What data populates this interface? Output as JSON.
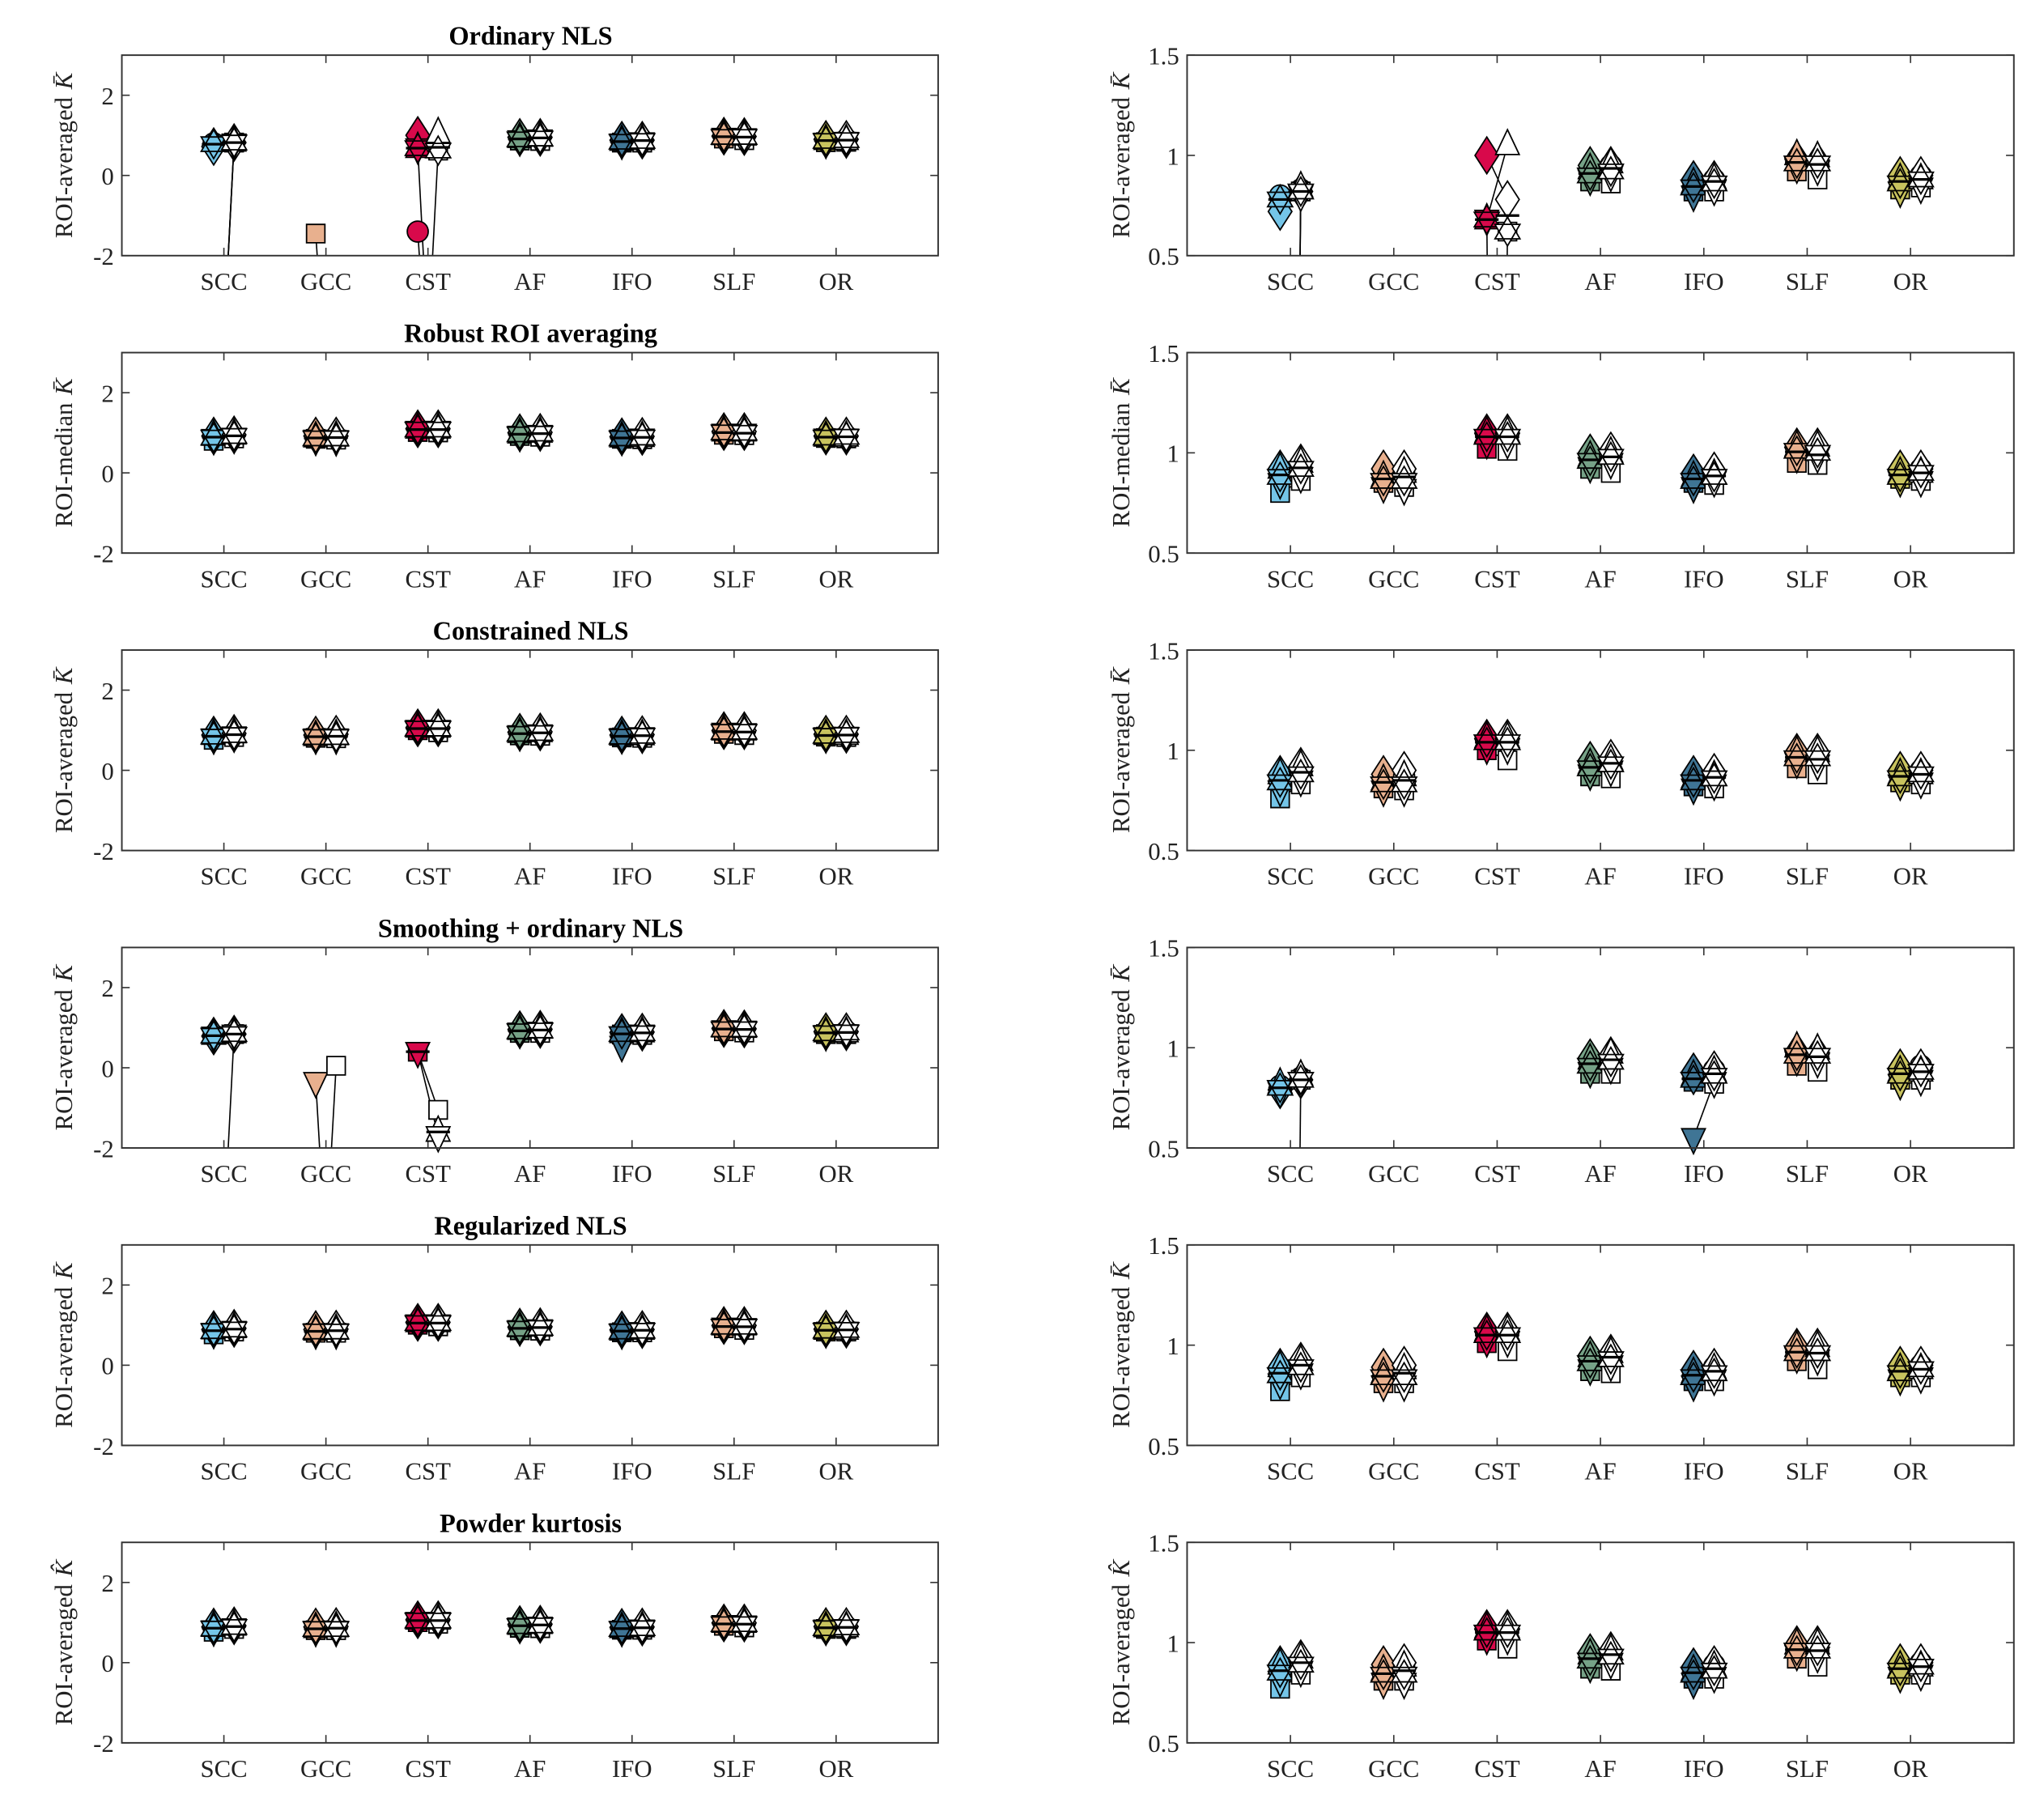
{
  "chart_data": {
    "type": "scatter",
    "categories": [
      "SCC",
      "GCC",
      "CST",
      "AF",
      "IFO",
      "SLF",
      "OR"
    ],
    "region_colors": {
      "SCC": "#74c5e8",
      "GCC": "#e8b08e",
      "CST": "#d8094b",
      "AF": "#76a287",
      "IFO": "#3f7595",
      "SLF": "#e8b08e",
      "OR": "#c8c35e"
    },
    "open_marker_color": "#ffffff",
    "marker_order": [
      "circle",
      "square",
      "diamond",
      "triangle-up",
      "triangle-down",
      "hexagram"
    ],
    "note_off_scale": -9,
    "xlim": [
      0,
      8
    ],
    "left_ylim": [
      -2,
      3
    ],
    "left_yticks": [
      "-2",
      "0",
      "2"
    ],
    "right_ylim": [
      0.5,
      1.5
    ],
    "right_yticks": [
      "0.5",
      "1",
      "1.5"
    ],
    "panels": [
      {
        "title": "Ordinary NLS",
        "ylabel": "ROI-averaged",
        "ysymbol": "K̄",
        "filled": {
          "SCC": [
            0.8,
            -9,
            0.72,
            -9,
            -9,
            0.78
          ],
          "GCC": [
            -9,
            -1.45,
            -9,
            -9,
            -9,
            -9
          ],
          "CST": [
            -1.4,
            -9,
            1.0,
            0.68,
            0.68,
            0.68
          ],
          "AF": [
            0.92,
            0.87,
            0.95,
            0.93,
            0.88,
            0.9
          ],
          "IFO": [
            0.85,
            0.82,
            0.88,
            0.86,
            0.8,
            0.84
          ],
          "SLF": [
            0.97,
            0.92,
            0.98,
            1.0,
            0.94,
            0.96
          ],
          "OR": [
            0.88,
            0.83,
            0.9,
            0.88,
            0.82,
            0.86
          ]
        },
        "open": {
          "SCC": [
            0.83,
            0.82,
            0.82,
            0.84,
            0.8,
            0.82
          ],
          "GCC": [
            -9,
            -9,
            -9,
            -9,
            -9,
            -9
          ],
          "CST": [
            -9,
            0.62,
            0.78,
            1.05,
            -9,
            0.62
          ],
          "AF": [
            0.95,
            0.86,
            0.95,
            0.96,
            0.9,
            0.92
          ],
          "IFO": [
            0.88,
            0.82,
            0.88,
            0.88,
            0.83,
            0.86
          ],
          "SLF": [
            0.95,
            0.88,
            0.97,
            0.99,
            0.93,
            0.96
          ],
          "OR": [
            0.9,
            0.84,
            0.9,
            0.88,
            0.84,
            0.88
          ]
        }
      },
      {
        "title": "Robust ROI averaging",
        "ylabel": "ROI-median",
        "ysymbol": "K̄",
        "filled": {
          "SCC": [
            0.9,
            0.8,
            0.92,
            0.92,
            0.85,
            0.88
          ],
          "GCC": [
            0.88,
            0.85,
            0.92,
            0.88,
            0.83,
            0.86
          ],
          "CST": [
            1.08,
            1.02,
            1.1,
            1.1,
            1.05,
            1.08
          ],
          "AF": [
            0.97,
            0.92,
            1.0,
            0.98,
            0.93,
            0.96
          ],
          "IFO": [
            0.88,
            0.85,
            0.9,
            0.88,
            0.83,
            0.86
          ],
          "SLF": [
            1.0,
            0.95,
            1.03,
            1.03,
            0.98,
            1.01
          ],
          "OR": [
            0.9,
            0.87,
            0.92,
            0.9,
            0.86,
            0.88
          ]
        },
        "open": {
          "SCC": [
            0.93,
            0.86,
            0.95,
            0.95,
            0.88,
            0.92
          ],
          "GCC": [
            0.9,
            0.83,
            0.92,
            0.9,
            0.82,
            0.86
          ],
          "CST": [
            1.08,
            1.01,
            1.1,
            1.1,
            1.05,
            1.08
          ],
          "AF": [
            0.98,
            0.9,
            1.01,
            1.0,
            0.95,
            0.98
          ],
          "IFO": [
            0.9,
            0.84,
            0.91,
            0.89,
            0.86,
            0.88
          ],
          "SLF": [
            0.98,
            0.94,
            1.03,
            1.03,
            0.98,
            1.0
          ],
          "OR": [
            0.92,
            0.86,
            0.92,
            0.9,
            0.86,
            0.9
          ]
        }
      },
      {
        "title": "Constrained NLS",
        "ylabel": "ROI-averaged",
        "ysymbol": "K̄",
        "filled": {
          "SCC": [
            0.86,
            0.76,
            0.88,
            0.88,
            0.8,
            0.84
          ],
          "GCC": [
            0.85,
            0.81,
            0.88,
            0.85,
            0.8,
            0.83
          ],
          "CST": [
            1.04,
            1.0,
            1.06,
            1.06,
            1.01,
            1.04
          ],
          "AF": [
            0.92,
            0.87,
            0.95,
            0.93,
            0.88,
            0.91
          ],
          "IFO": [
            0.86,
            0.82,
            0.88,
            0.86,
            0.81,
            0.84
          ],
          "SLF": [
            0.97,
            0.91,
            0.99,
            0.99,
            0.94,
            0.96
          ],
          "OR": [
            0.88,
            0.84,
            0.9,
            0.88,
            0.83,
            0.86
          ]
        },
        "open": {
          "SCC": [
            0.9,
            0.83,
            0.92,
            0.92,
            0.85,
            0.88
          ],
          "GCC": [
            0.87,
            0.8,
            0.9,
            0.87,
            0.8,
            0.83
          ],
          "CST": [
            1.04,
            0.95,
            1.06,
            1.06,
            1.01,
            1.04
          ],
          "AF": [
            0.94,
            0.86,
            0.96,
            0.95,
            0.9,
            0.93
          ],
          "IFO": [
            0.88,
            0.81,
            0.89,
            0.87,
            0.83,
            0.86
          ],
          "SLF": [
            0.95,
            0.88,
            0.99,
            0.99,
            0.93,
            0.96
          ],
          "OR": [
            0.9,
            0.83,
            0.9,
            0.88,
            0.84,
            0.88
          ]
        }
      },
      {
        "title": "Smoothing + ordinary NLS",
        "ylabel": "ROI-averaged",
        "ysymbol": "K̄",
        "filled": {
          "SCC": [
            0.81,
            -9,
            0.79,
            0.82,
            0.78,
            0.8
          ],
          "GCC": [
            -9,
            -9,
            -9,
            -9,
            -0.35,
            -9
          ],
          "CST": [
            -9,
            0.4,
            -9,
            -9,
            0.4,
            -9
          ],
          "AF": [
            0.93,
            0.87,
            0.95,
            0.94,
            0.88,
            0.91
          ],
          "IFO": [
            0.85,
            0.83,
            0.88,
            0.86,
            0.55,
            0.84
          ],
          "SLF": [
            0.97,
            0.91,
            0.98,
            1.0,
            0.94,
            0.96
          ],
          "OR": [
            0.88,
            0.84,
            0.9,
            0.88,
            0.82,
            0.86
          ]
        },
        "open": {
          "SCC": [
            0.85,
            0.84,
            0.84,
            0.86,
            0.83,
            0.84
          ],
          "GCC": [
            -9,
            0.05,
            -9,
            -9,
            -9,
            -9
          ],
          "CST": [
            -9,
            -1.05,
            -9,
            -1.6,
            -1.7,
            -9
          ],
          "AF": [
            0.95,
            0.87,
            0.96,
            0.97,
            0.9,
            0.93
          ],
          "IFO": [
            0.89,
            0.82,
            0.89,
            0.88,
            0.83,
            0.86
          ],
          "SLF": [
            0.95,
            0.88,
            0.97,
            0.99,
            0.93,
            0.96
          ],
          "OR": [
            0.91,
            0.84,
            0.9,
            0.88,
            0.84,
            0.88
          ]
        }
      },
      {
        "title": "Regularized NLS",
        "ylabel": "ROI-averaged",
        "ysymbol": "K̄",
        "filled": {
          "SCC": [
            0.87,
            0.77,
            0.89,
            0.89,
            0.81,
            0.85
          ],
          "GCC": [
            0.85,
            0.81,
            0.89,
            0.86,
            0.8,
            0.84
          ],
          "CST": [
            1.05,
            1.01,
            1.07,
            1.07,
            1.02,
            1.05
          ],
          "AF": [
            0.93,
            0.87,
            0.95,
            0.94,
            0.88,
            0.91
          ],
          "IFO": [
            0.86,
            0.82,
            0.88,
            0.86,
            0.8,
            0.84
          ],
          "SLF": [
            0.97,
            0.92,
            0.99,
            0.99,
            0.94,
            0.96
          ],
          "OR": [
            0.88,
            0.84,
            0.9,
            0.88,
            0.83,
            0.86
          ]
        },
        "open": {
          "SCC": [
            0.91,
            0.84,
            0.92,
            0.92,
            0.86,
            0.89
          ],
          "GCC": [
            0.88,
            0.81,
            0.9,
            0.88,
            0.8,
            0.84
          ],
          "CST": [
            1.05,
            0.97,
            1.07,
            1.07,
            1.02,
            1.05
          ],
          "AF": [
            0.95,
            0.86,
            0.96,
            0.96,
            0.9,
            0.93
          ],
          "IFO": [
            0.89,
            0.82,
            0.89,
            0.88,
            0.83,
            0.86
          ],
          "SLF": [
            0.96,
            0.88,
            0.99,
            0.99,
            0.93,
            0.96
          ],
          "OR": [
            0.9,
            0.84,
            0.9,
            0.88,
            0.84,
            0.88
          ]
        }
      },
      {
        "title": "Powder kurtosis",
        "ylabel": "ROI-averaged",
        "ysymbol": "K̂",
        "filled": {
          "SCC": [
            0.87,
            0.77,
            0.89,
            0.89,
            0.81,
            0.85
          ],
          "GCC": [
            0.85,
            0.81,
            0.89,
            0.86,
            0.8,
            0.84
          ],
          "CST": [
            1.05,
            1.01,
            1.07,
            1.07,
            1.02,
            1.05
          ],
          "AF": [
            0.93,
            0.87,
            0.95,
            0.94,
            0.88,
            0.91
          ],
          "IFO": [
            0.86,
            0.82,
            0.88,
            0.86,
            0.8,
            0.84
          ],
          "SLF": [
            0.97,
            0.92,
            0.99,
            0.99,
            0.94,
            0.96
          ],
          "OR": [
            0.88,
            0.84,
            0.9,
            0.88,
            0.83,
            0.86
          ]
        },
        "open": {
          "SCC": [
            0.91,
            0.84,
            0.92,
            0.92,
            0.86,
            0.89
          ],
          "GCC": [
            0.88,
            0.81,
            0.9,
            0.88,
            0.8,
            0.84
          ],
          "CST": [
            1.05,
            0.97,
            1.07,
            1.07,
            1.02,
            1.05
          ],
          "AF": [
            0.95,
            0.86,
            0.96,
            0.96,
            0.9,
            0.93
          ],
          "IFO": [
            0.89,
            0.82,
            0.89,
            0.88,
            0.83,
            0.86
          ],
          "SLF": [
            0.96,
            0.88,
            0.99,
            0.99,
            0.93,
            0.96
          ],
          "OR": [
            0.9,
            0.84,
            0.9,
            0.88,
            0.84,
            0.88
          ]
        }
      }
    ]
  }
}
